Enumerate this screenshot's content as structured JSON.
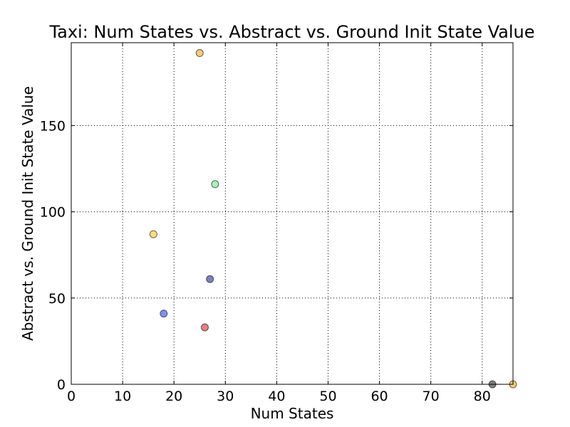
{
  "chart_data": {
    "type": "scatter",
    "title": "Taxi: Num States vs. Abstract vs. Ground Init State Value",
    "xlabel": "Num States",
    "ylabel": "Abstract vs. Ground Init State Value",
    "xlim": [
      0,
      86
    ],
    "ylim": [
      0,
      198
    ],
    "xticks": [
      0,
      10,
      20,
      30,
      40,
      50,
      60,
      70,
      80
    ],
    "yticks": [
      0,
      50,
      100,
      150
    ],
    "grid": true,
    "points": [
      {
        "x": 25,
        "y": 192,
        "color": "#f5a623"
      },
      {
        "x": 28,
        "y": 116,
        "color": "#6ee08f"
      },
      {
        "x": 16,
        "y": 87,
        "color": "#f7c531"
      },
      {
        "x": 27,
        "y": 61,
        "color": "#2a2a8a"
      },
      {
        "x": 18,
        "y": 41,
        "color": "#3246e8"
      },
      {
        "x": 26,
        "y": 33,
        "color": "#d62f2f"
      },
      {
        "x": 82,
        "y": 0,
        "color": "#2b2b2b"
      },
      {
        "x": 86,
        "y": 0,
        "color": "#f5a623"
      }
    ]
  }
}
